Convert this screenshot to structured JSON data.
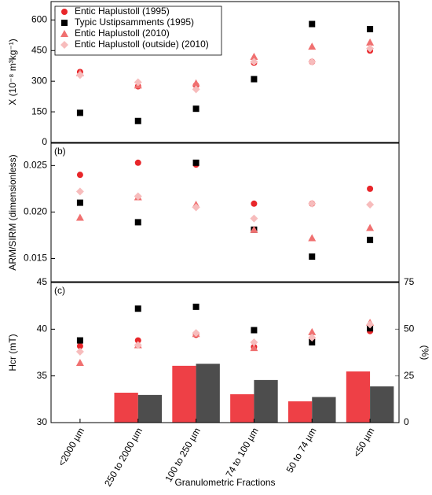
{
  "chart_data": [
    {
      "type": "scatter",
      "panel_label": "(a)",
      "y_label": "X (10⁻⁸ m³kg⁻¹)",
      "ylim": [
        0,
        690
      ],
      "yticks": [
        0,
        150,
        300,
        450,
        600
      ],
      "legend": "upper left",
      "series": [
        {
          "name": "Entic Haplustoll (1995)",
          "marker": "circle",
          "color": "#e8262a",
          "values": [
            345,
            275,
            280,
            390,
            395,
            450
          ]
        },
        {
          "name": "Typic Ustipsamments (1995)",
          "marker": "square",
          "color": "#000000",
          "values": [
            145,
            105,
            165,
            310,
            580,
            555
          ]
        },
        {
          "name": "Entic Haplustoll (2010)",
          "marker": "triangle",
          "color": "#f07070",
          "values": [
            340,
            280,
            290,
            420,
            470,
            490
          ]
        },
        {
          "name": "Entic Haplustoll (outside) (2010)",
          "marker": "diamond",
          "color": "#f7bcbc",
          "values": [
            330,
            295,
            260,
            395,
            395,
            460
          ]
        }
      ]
    },
    {
      "type": "scatter",
      "panel_label": "(b)",
      "y_label": "ARM/SIRM (dimensionless)",
      "ylim": [
        0.0125,
        0.0274
      ],
      "yticks": [
        0.015,
        {
          "value": 0.02,
          "label": "0.020"
        },
        0.025
      ],
      "series": [
        {
          "marker": "circle",
          "color": "#e8262a",
          "values": [
            0.024,
            0.0253,
            0.0251,
            0.0209,
            0.0209,
            0.0225
          ]
        },
        {
          "marker": "square",
          "color": "#000000",
          "values": [
            0.021,
            0.0189,
            0.0253,
            0.0181,
            0.0152,
            0.017
          ]
        },
        {
          "marker": "triangle",
          "color": "#f07070",
          "values": [
            0.0194,
            0.0216,
            0.0208,
            0.0181,
            0.0172,
            0.0183
          ]
        },
        {
          "marker": "diamond",
          "color": "#f7bcbc",
          "values": [
            0.0222,
            0.0217,
            0.0205,
            0.0193,
            0.0209,
            0.0208
          ]
        }
      ]
    },
    {
      "type": "scatter",
      "panel_label": "(c)",
      "y_label": "Hcr (mT)",
      "y2_label": "(%)",
      "x_label": "Granulometric Fractions",
      "categories": [
        "<2000 µm",
        "250 to 2000 µm",
        "100 to 250 µm",
        "74 to 100 µm",
        "50 to 74 µm",
        "<50 µm"
      ],
      "ylim": [
        30,
        45
      ],
      "yticks": [
        30,
        35,
        40,
        45
      ],
      "y2lim": [
        0,
        75
      ],
      "y2ticks": [
        0,
        25,
        50,
        75
      ],
      "series": [
        {
          "marker": "bar",
          "axis": "y2",
          "color": "#ee4046",
          "values": [
            null,
            16,
            30.4,
            15.2,
            11.4,
            27.4
          ]
        },
        {
          "marker": "bar",
          "axis": "y2",
          "color": "#4d4d4d",
          "values": [
            null,
            14.8,
            31.5,
            22.8,
            13.7,
            19.4
          ]
        },
        {
          "marker": "circle",
          "color": "#e8262a",
          "values": [
            38.2,
            38.8,
            39.4,
            38.1,
            38.9,
            39.8
          ]
        },
        {
          "marker": "square",
          "color": "#000000",
          "values": [
            38.8,
            42.2,
            42.4,
            39.9,
            38.6,
            40.1
          ]
        },
        {
          "marker": "triangle",
          "color": "#f07070",
          "values": [
            36.4,
            38.3,
            39.5,
            38.0,
            39.7,
            40.7
          ]
        },
        {
          "marker": "diamond",
          "color": "#f7bcbc",
          "values": [
            37.6,
            38.3,
            39.6,
            38.6,
            39.1,
            40.5
          ]
        }
      ]
    }
  ]
}
